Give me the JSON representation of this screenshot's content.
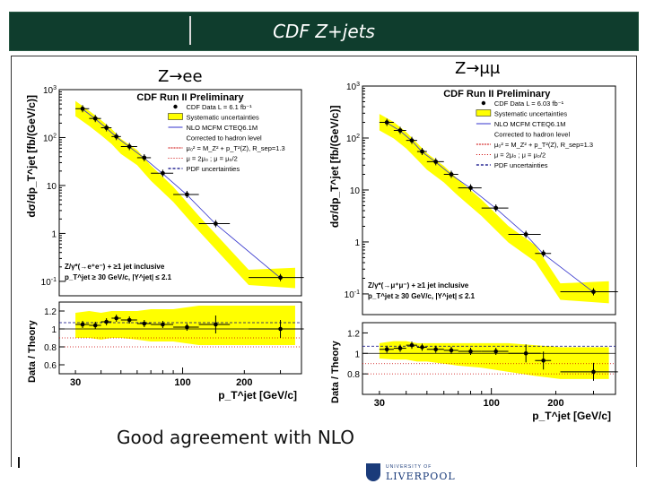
{
  "slide": {
    "title": "CDF Z+jets",
    "label_ee": "Z→ee",
    "label_mumu": "Z→μμ",
    "caption": "Good agreement with NLO",
    "logo_small": "UNIVERSITY OF",
    "logo_big": "LIVERPOOL"
  },
  "colors": {
    "title_bar": "#0f3d2d",
    "band": "#ffff00",
    "data": "#000000",
    "nlo": "#3333cc",
    "hadron": "#cc0000",
    "pdf": "#000080"
  },
  "chart_data": [
    {
      "type": "scatter",
      "channel": "ee",
      "title": "CDF Run II Preliminary",
      "ylabel": "dσ/dp_T^jet [fb/(GeV/c)]",
      "ylim": [
        0.05,
        1000
      ],
      "yscale": "log",
      "xlabel": "p_T^jet [GeV/c]",
      "xscale": "log",
      "xlim": [
        25,
        380
      ],
      "x_ticks": [
        "30",
        "100",
        "200"
      ],
      "y_ticks": [
        "10^-1",
        "1",
        "10",
        "10^2",
        "10^3"
      ],
      "legend": [
        "CDF Data L = 6.1 fb⁻¹",
        "Systematic uncertainties",
        "NLO MCFM CTEQ6.1M",
        "Corrected to hadron level",
        "μ₀² = M_Z² + p_T²(Z), R_sep=1.3",
        "μ = 2μ₀ ; μ = μ₀/2",
        "PDF uncertainties"
      ],
      "annotation": [
        "Z/γ*(→e⁺e⁻) + ≥1 jet inclusive",
        "p_T^jet ≥ 30 GeV/c, |Y^jet| ≤ 2.1"
      ],
      "x": [
        32.5,
        37.5,
        42.5,
        47.5,
        55,
        65,
        80,
        105,
        145,
        300
      ],
      "xerr": [
        2.5,
        2.5,
        2.5,
        2.5,
        5,
        5,
        10,
        15,
        25,
        90
      ],
      "y": [
        400,
        250,
        160,
        105,
        65,
        38,
        18,
        6.5,
        1.6,
        0.12
      ],
      "ratio": {
        "ylabel": "Data / Theory",
        "ylim": [
          0.5,
          1.3
        ],
        "y_ticks": [
          "0.6",
          "0.8",
          "1",
          "1.2"
        ],
        "values": [
          1.05,
          1.04,
          1.08,
          1.12,
          1.1,
          1.06,
          1.05,
          1.02,
          1.05,
          1.0
        ],
        "band_low": [
          0.9,
          0.9,
          0.88,
          0.9,
          0.9,
          0.88,
          0.86,
          0.86,
          0.82,
          0.82
        ],
        "band_high": [
          1.18,
          1.2,
          1.18,
          1.2,
          1.2,
          1.2,
          1.22,
          1.22,
          1.26,
          1.26
        ]
      }
    },
    {
      "type": "scatter",
      "channel": "mumu",
      "title": "CDF Run II Preliminary",
      "ylabel": "dσ/dp_T^jet [fb/(GeV/c)]",
      "ylim": [
        0.04,
        1000
      ],
      "yscale": "log",
      "xlabel": "p_T^jet [GeV/c]",
      "xscale": "log",
      "xlim": [
        25,
        380
      ],
      "x_ticks": [
        "30",
        "100",
        "200"
      ],
      "y_ticks": [
        "10^-1",
        "1",
        "10",
        "10^2",
        "10^3"
      ],
      "legend": [
        "CDF Data L = 6.03 fb⁻¹",
        "Systematic uncertainties",
        "NLO MCFM CTEQ6.1M",
        "Corrected to hadron level",
        "μ₀² = M_Z² + p_T²(Z), R_sep=1.3",
        "μ = 2μ₀ ; μ = μ₀/2",
        "PDF uncertainties"
      ],
      "annotation": [
        "Z/γ*(→μ⁺μ⁻) + ≥1 jet inclusive",
        "p_T^jet ≥ 30 GeV/c, |Y^jet| ≤ 2.1"
      ],
      "x": [
        32.5,
        37.5,
        42.5,
        47.5,
        55,
        65,
        80,
        105,
        145,
        175,
        300
      ],
      "xerr": [
        2.5,
        2.5,
        2.5,
        2.5,
        5,
        5,
        10,
        15,
        25,
        15,
        90
      ],
      "y": [
        200,
        140,
        90,
        55,
        35,
        20,
        11,
        4.5,
        1.4,
        0.6,
        0.11
      ],
      "ratio": {
        "ylabel": "Data / Theory",
        "ylim": [
          0.6,
          1.3
        ],
        "y_ticks": [
          "0.8",
          "1",
          "1.2"
        ],
        "values": [
          1.04,
          1.05,
          1.08,
          1.06,
          1.04,
          1.03,
          1.02,
          1.02,
          1.0,
          0.93,
          0.82
        ],
        "band_low": [
          0.95,
          0.94,
          0.94,
          0.92,
          0.92,
          0.9,
          0.88,
          0.86,
          0.82,
          0.78,
          0.75
        ],
        "band_high": [
          1.1,
          1.12,
          1.12,
          1.1,
          1.1,
          1.1,
          1.1,
          1.1,
          1.1,
          1.08,
          1.06
        ]
      }
    }
  ]
}
